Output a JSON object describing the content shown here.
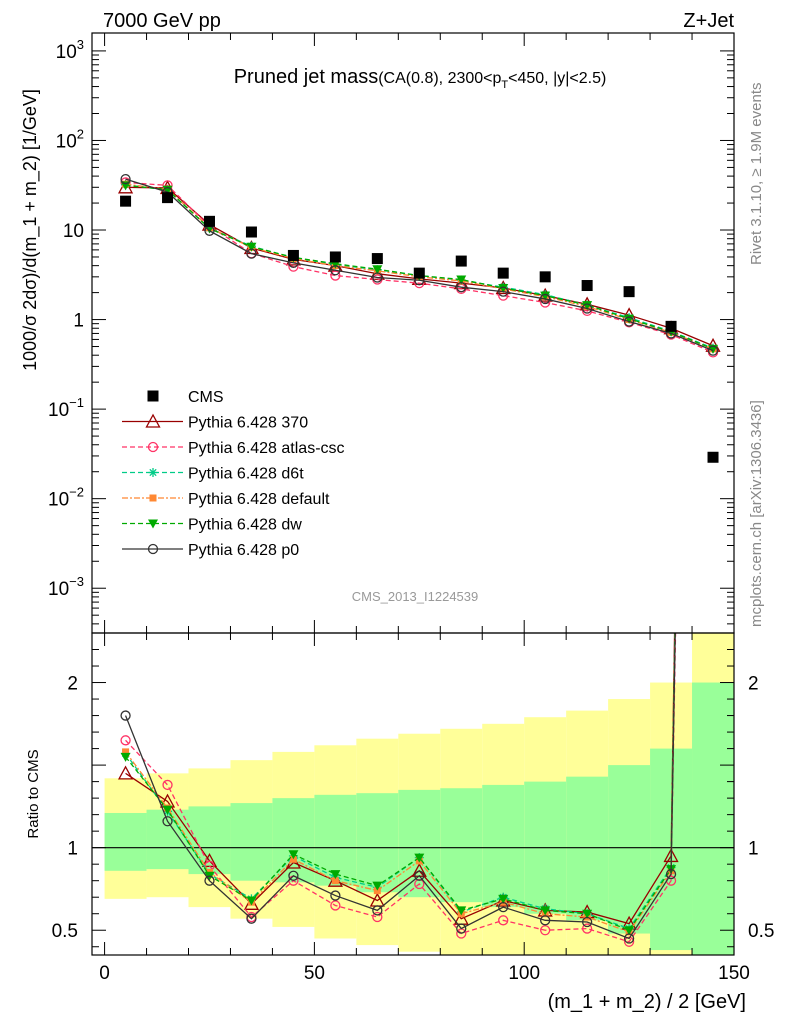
{
  "header": {
    "left": "7000 GeV pp",
    "right": "Z+Jet"
  },
  "side_labels": {
    "rivet": "Rivet 3.1.10, ≥ 1.9M events",
    "mcplots": "mcplots.cern.ch [arXiv:1306.3436]"
  },
  "chart_data": {
    "type": "scatter",
    "title": "Pruned jet mass",
    "subtitle": {
      "pre": "(CA(0.8), 2300<p",
      "sub": "T",
      "post": "<450, |y|<2.5)"
    },
    "analysis_id": "CMS_2013_I1224539",
    "xlabel": "(m_1 + m_2) / 2 [GeV]",
    "ylabel_main": "1000/σ 2dσ)/d(m_1 + m_2) [1/GeV]",
    "ylabel_ratio": "Ratio to CMS",
    "xlim": [
      -3,
      150
    ],
    "xticks": [
      0,
      50,
      100,
      150
    ],
    "xtick_labels": [
      "0",
      "50",
      "100",
      "150"
    ],
    "ylim_main_log10": [
      -3.5,
      3.2
    ],
    "yticks_main": [
      {
        "base": "10",
        "exp": "3",
        "v": 3
      },
      {
        "base": "10",
        "exp": "2",
        "v": 2
      },
      {
        "base": "10",
        "exp": "",
        "v": 1
      },
      {
        "base": "1",
        "exp": "",
        "v": 0
      },
      {
        "base": "10",
        "exp": "−1",
        "v": -1
      },
      {
        "base": "10",
        "exp": "−2",
        "v": -2
      },
      {
        "base": "10",
        "exp": "−3",
        "v": -3
      }
    ],
    "ylim_ratio": [
      0.35,
      2.3
    ],
    "yticks_ratio": [
      {
        "label": "0.5",
        "v": 0.5
      },
      {
        "label": "1",
        "v": 1
      },
      {
        "label": "2",
        "v": 2
      }
    ],
    "x": [
      5,
      15,
      25,
      35,
      45,
      55,
      65,
      75,
      85,
      95,
      105,
      115,
      125,
      135,
      145
    ],
    "bin_edges": [
      0,
      10,
      20,
      30,
      40,
      50,
      60,
      70,
      80,
      90,
      100,
      110,
      120,
      130,
      140,
      150
    ],
    "data": {
      "name": "CMS",
      "color": "#000000",
      "values": [
        21,
        23,
        12.5,
        9.5,
        5.2,
        5.0,
        4.8,
        3.3,
        4.5,
        3.3,
        3.0,
        2.4,
        2.05,
        0.84,
        0.029
      ]
    },
    "band_inner": {
      "color": "#99ff99",
      "lo": [
        0.86,
        0.87,
        0.84,
        0.8,
        0.79,
        0.77,
        0.73,
        0.7,
        0.67,
        0.64,
        0.6,
        0.56,
        0.48,
        0.38,
        0.35
      ],
      "hi": [
        1.21,
        1.23,
        1.25,
        1.27,
        1.3,
        1.32,
        1.33,
        1.35,
        1.36,
        1.38,
        1.4,
        1.43,
        1.5,
        1.6,
        2.0
      ]
    },
    "band_outer": {
      "color": "#ffff99",
      "lo": [
        0.69,
        0.7,
        0.64,
        0.57,
        0.52,
        0.45,
        0.41,
        0.37,
        0.33,
        0.3,
        0.26,
        0.22,
        0.15,
        0.1,
        0.05
      ],
      "hi": [
        1.42,
        1.45,
        1.48,
        1.53,
        1.58,
        1.62,
        1.66,
        1.69,
        1.72,
        1.75,
        1.79,
        1.83,
        1.9,
        2.0,
        2.4
      ]
    },
    "series": [
      {
        "name": "Pythia 6.428 370",
        "color": "#990000",
        "dash": "",
        "marker": "triangle-open",
        "values": [
          30.0,
          29.5,
          11.5,
          6.3,
          4.7,
          4.0,
          3.25,
          2.85,
          2.55,
          2.25,
          1.85,
          1.48,
          1.12,
          0.8,
          0.51
        ],
        "ratio": [
          1.45,
          1.28,
          0.92,
          0.66,
          0.91,
          0.8,
          0.68,
          0.86,
          0.57,
          0.68,
          0.62,
          0.61,
          0.54,
          0.95,
          17.0
        ]
      },
      {
        "name": "Pythia 6.428 atlas-csc",
        "color": "#ff3366",
        "dash": "5,3",
        "marker": "circle-open",
        "values": [
          34.0,
          31.5,
          11.0,
          5.5,
          3.9,
          3.1,
          2.8,
          2.55,
          2.2,
          1.85,
          1.55,
          1.25,
          0.93,
          0.68,
          0.43
        ],
        "ratio": [
          1.65,
          1.38,
          0.89,
          0.58,
          0.8,
          0.65,
          0.58,
          0.78,
          0.48,
          0.56,
          0.5,
          0.51,
          0.43,
          0.8,
          14.8
        ]
      },
      {
        "name": "Pythia 6.428 d6t",
        "color": "#00cc88",
        "dash": "5,3",
        "marker": "star",
        "values": [
          32.0,
          28.0,
          10.5,
          6.6,
          4.9,
          4.1,
          3.6,
          3.1,
          2.75,
          2.3,
          1.9,
          1.45,
          1.05,
          0.74,
          0.48
        ],
        "ratio": [
          1.57,
          1.22,
          0.84,
          0.69,
          0.95,
          0.82,
          0.76,
          0.94,
          0.61,
          0.7,
          0.63,
          0.6,
          0.51,
          0.88,
          16.5
        ]
      },
      {
        "name": "Pythia 6.428 default",
        "color": "#ff8833",
        "dash": "6,2,2,2",
        "marker": "square",
        "values": [
          32.5,
          28.5,
          10.6,
          6.4,
          4.8,
          4.0,
          3.5,
          3.0,
          2.7,
          2.2,
          1.8,
          1.4,
          1.0,
          0.72,
          0.47
        ],
        "ratio": [
          1.58,
          1.24,
          0.85,
          0.67,
          0.93,
          0.8,
          0.74,
          0.92,
          0.6,
          0.67,
          0.6,
          0.58,
          0.49,
          0.86,
          16.2
        ]
      },
      {
        "name": "Pythia 6.428 dw",
        "color": "#00aa00",
        "dash": "5,3",
        "marker": "triangle-down",
        "values": [
          31.5,
          28.2,
          10.4,
          6.5,
          4.95,
          4.2,
          3.65,
          3.1,
          2.8,
          2.25,
          1.85,
          1.45,
          1.02,
          0.73,
          0.47
        ],
        "ratio": [
          1.55,
          1.23,
          0.83,
          0.68,
          0.96,
          0.84,
          0.77,
          0.94,
          0.62,
          0.69,
          0.62,
          0.6,
          0.5,
          0.87,
          16.0
        ]
      },
      {
        "name": "Pythia 6.428 p0",
        "color": "#333333",
        "dash": "",
        "marker": "circle-open",
        "values": [
          37.0,
          26.5,
          9.8,
          5.45,
          4.3,
          3.55,
          2.95,
          2.75,
          2.3,
          2.05,
          1.7,
          1.33,
          0.95,
          0.7,
          0.45
        ],
        "ratio": [
          1.8,
          1.16,
          0.8,
          0.57,
          0.83,
          0.71,
          0.62,
          0.83,
          0.51,
          0.64,
          0.56,
          0.55,
          0.45,
          0.84,
          15.5
        ]
      }
    ]
  }
}
